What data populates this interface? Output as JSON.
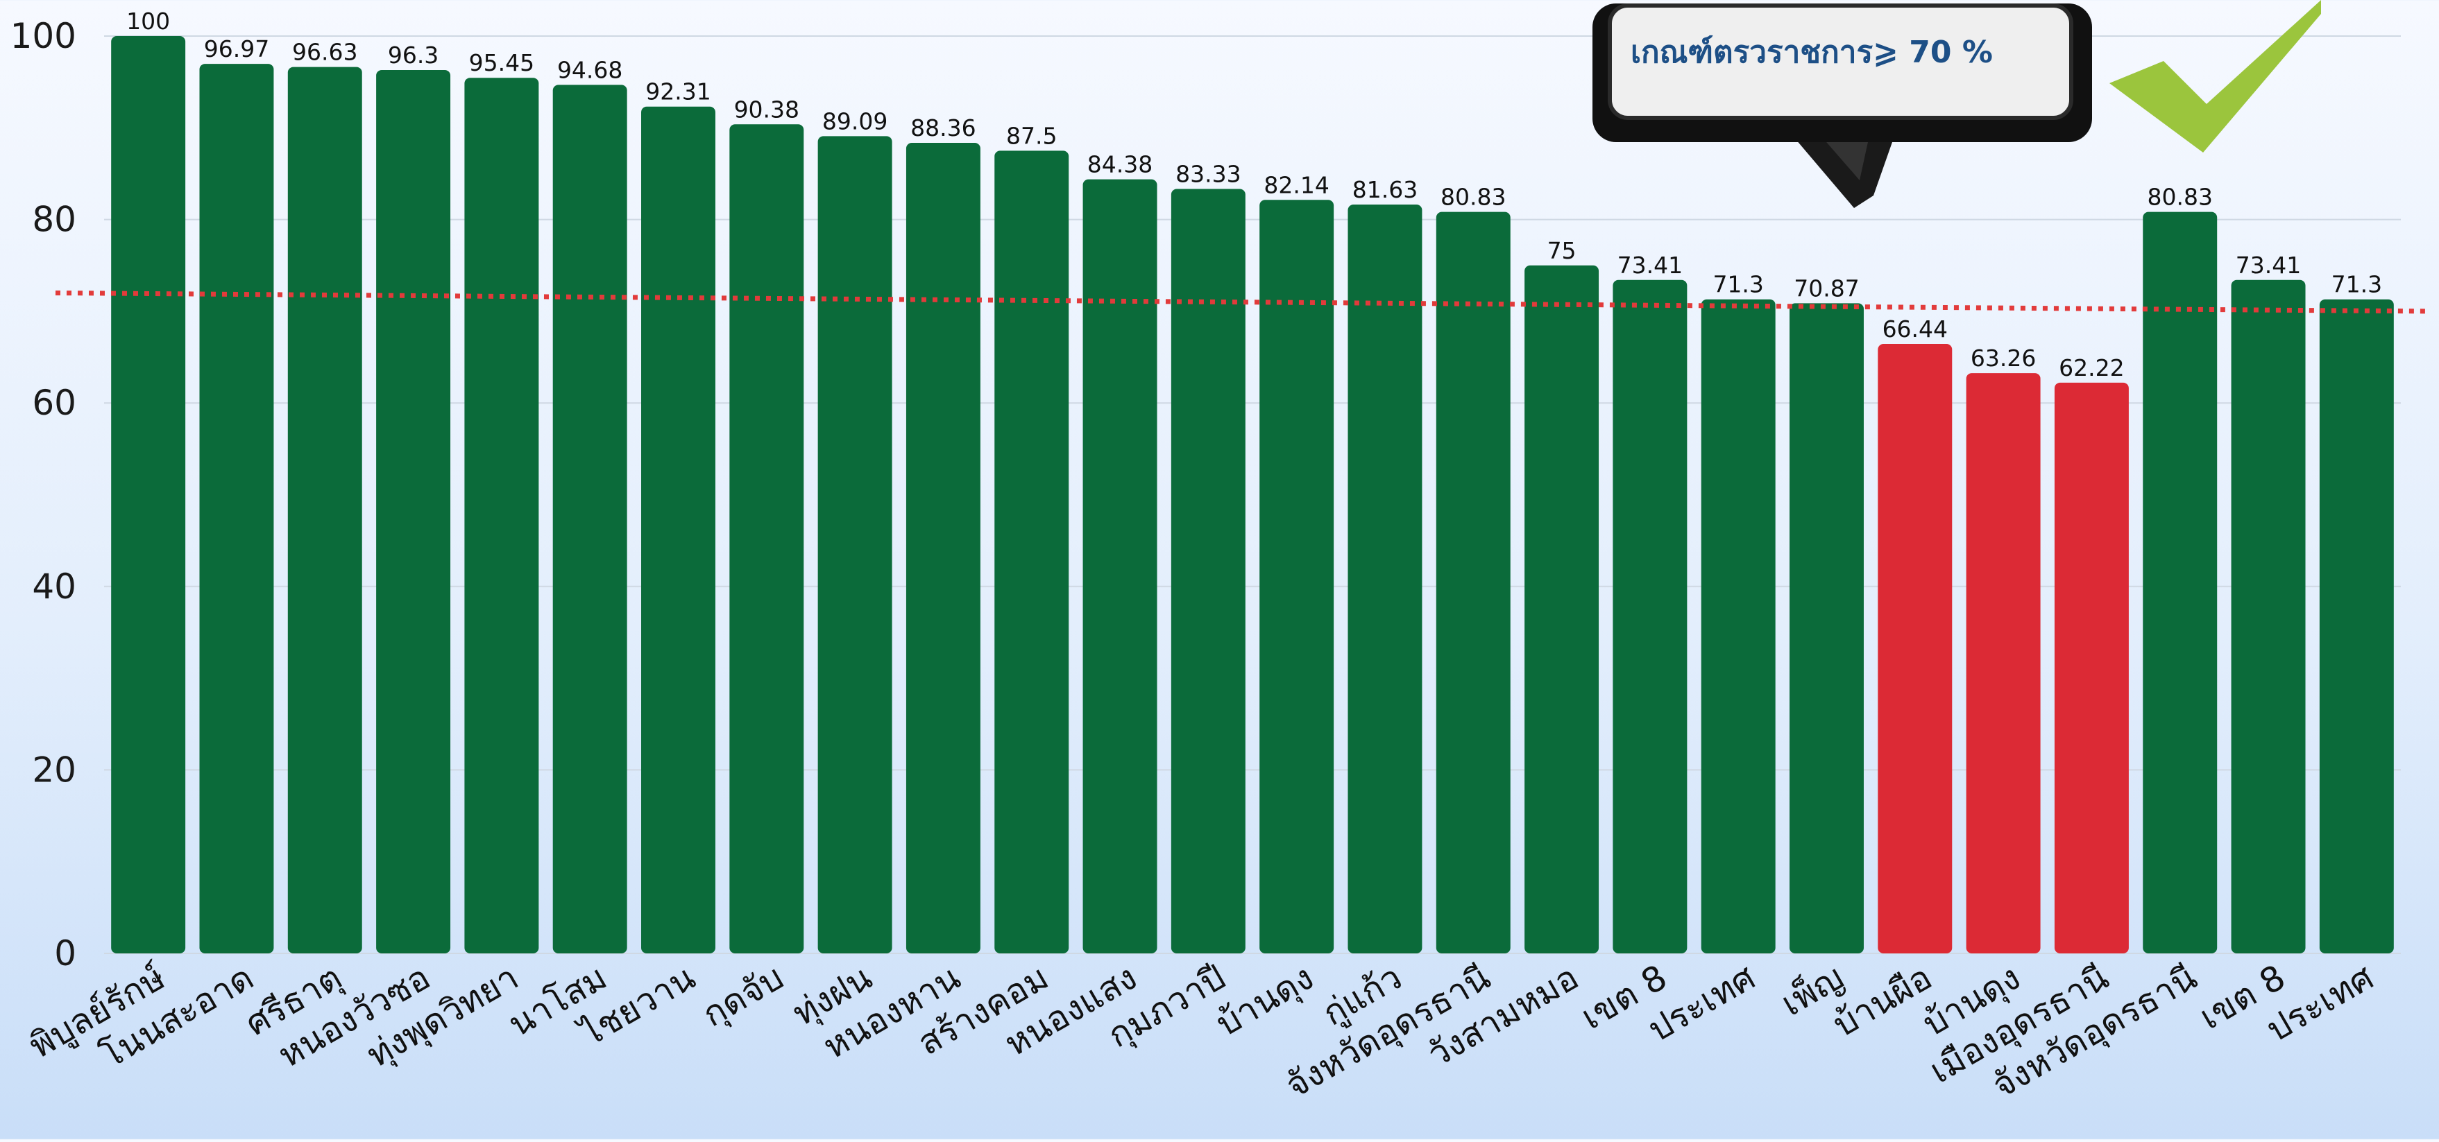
{
  "chart_data": {
    "type": "bar",
    "title": "",
    "xlabel": "",
    "ylabel": "",
    "ylim": [
      0,
      100
    ],
    "y_ticks": [
      0,
      20,
      40,
      60,
      80,
      100
    ],
    "grid": "horizontal",
    "legend": "none",
    "categories": [
      "พิบูลย์รักษ์",
      "โนนสะอาด",
      "ศรีธาตุ",
      "หนองวัวซอ",
      "ทุ่งพุดวิทยา",
      "นาโสม",
      "ไชยวาน",
      "กุดจับ",
      "ทุ่งฝน",
      "หนองหาน",
      "สร้างคอม",
      "หนองแสง",
      "กุมภวาปี",
      "บ้านดุง",
      "กู่แก้ว",
      "จังหวัดอุดรธานี",
      "วังสามหมอ",
      "เขต 8",
      "ประเทศ",
      "เพ็ญ",
      "บ้านผือ",
      "บ้านดุง",
      "เมืองอุดรธานี",
      "จังหวัดอุดรธานี",
      "เขต 8",
      "ประเทศ"
    ],
    "values": [
      100,
      96.97,
      96.63,
      96.3,
      95.45,
      94.68,
      92.31,
      90.38,
      89.09,
      88.36,
      87.5,
      84.38,
      83.33,
      82.14,
      81.63,
      80.83,
      75,
      73.41,
      71.3,
      70.87,
      66.44,
      63.26,
      62.22,
      80.83,
      73.41,
      71.3
    ],
    "value_labels": [
      "100",
      "96.97",
      "96.63",
      "96.3",
      "95.45",
      "94.68",
      "92.31",
      "90.38",
      "89.09",
      "88.36",
      "87.5",
      "84.38",
      "83.33",
      "82.14",
      "81.63",
      "80.83",
      "75",
      "73.41",
      "71.3",
      "70.87",
      "66.44",
      "63.26",
      "62.22",
      "80.83",
      "73.41",
      "71.3"
    ],
    "bar_colors": [
      "#0b6b3a",
      "#0b6b3a",
      "#0b6b3a",
      "#0b6b3a",
      "#0b6b3a",
      "#0b6b3a",
      "#0b6b3a",
      "#0b6b3a",
      "#0b6b3a",
      "#0b6b3a",
      "#0b6b3a",
      "#0b6b3a",
      "#0b6b3a",
      "#0b6b3a",
      "#0b6b3a",
      "#0b6b3a",
      "#0b6b3a",
      "#0b6b3a",
      "#0b6b3a",
      "#0b6b3a",
      "#dc2a35",
      "#dc2a35",
      "#dc2a35",
      "#0b6b3a",
      "#0b6b3a",
      "#0b6b3a"
    ],
    "threshold": {
      "value_start": 72,
      "value_end": 70,
      "color": "#e23b3b",
      "style": "dotted"
    },
    "callout": {
      "text": "เกณฑ์ตรวราชการ⩾ 70 %",
      "text_color": "#1d4f86"
    },
    "checkmark": {
      "icon": "checkmark-icon",
      "color": "#9bc53d"
    }
  },
  "colors": {
    "good": "#0b6b3a",
    "below_target": "#dc2a35",
    "gridline": "#cfd8e3",
    "threshold_line": "#e23b3b",
    "background_top": "#f6f9ff",
    "background_bottom": "#c9def8"
  }
}
